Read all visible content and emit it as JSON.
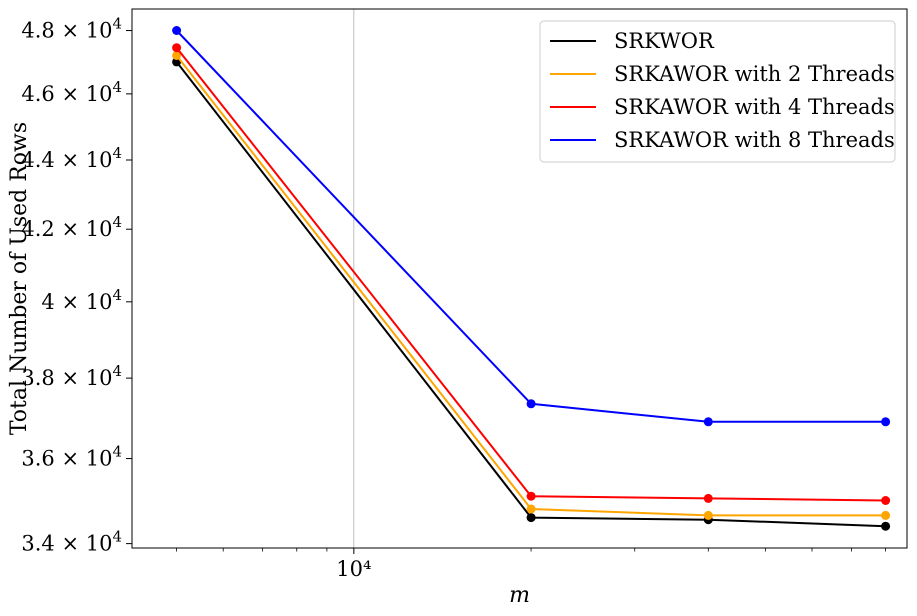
{
  "chart_data": {
    "type": "line",
    "title": "",
    "xlabel": "m",
    "ylabel": "Total Number of Used Rows",
    "xscale": "log",
    "yscale": "log",
    "x": [
      5000,
      20000,
      40000,
      80000
    ],
    "xlim": [
      4200,
      87000
    ],
    "ylim": [
      33900,
      48700
    ],
    "xticks": [
      {
        "value": 10000,
        "label": "10⁴",
        "mantissa": "",
        "exponent": "4"
      }
    ],
    "yticks": [
      {
        "value": 34000,
        "mantissa": "3.4",
        "exponent": "4"
      },
      {
        "value": 36000,
        "mantissa": "3.6",
        "exponent": "4"
      },
      {
        "value": 38000,
        "mantissa": "3.8",
        "exponent": "4"
      },
      {
        "value": 40000,
        "mantissa": "4",
        "exponent": "4"
      },
      {
        "value": 42000,
        "mantissa": "4.2",
        "exponent": "4"
      },
      {
        "value": 44000,
        "mantissa": "4.4",
        "exponent": "4"
      },
      {
        "value": 46000,
        "mantissa": "4.6",
        "exponent": "4"
      },
      {
        "value": 48000,
        "mantissa": "4.8",
        "exponent": "4"
      }
    ],
    "grid": "vertical at 10^4 only",
    "legend_position": "top-right",
    "series": [
      {
        "name": "SRKWOR",
        "color": "#000000",
        "values": [
          47000,
          34600,
          34550,
          34400
        ]
      },
      {
        "name": "SRKAWOR with 2 Threads",
        "color": "#FFA500",
        "values": [
          47200,
          34800,
          34650,
          34650
        ]
      },
      {
        "name": "SRKAWOR with 4 Threads",
        "color": "#FF0000",
        "values": [
          47450,
          35100,
          35050,
          35000
        ]
      },
      {
        "name": "SRKAWOR with 8 Threads",
        "color": "#0000FF",
        "values": [
          48000,
          37350,
          36900,
          36900
        ]
      }
    ]
  }
}
